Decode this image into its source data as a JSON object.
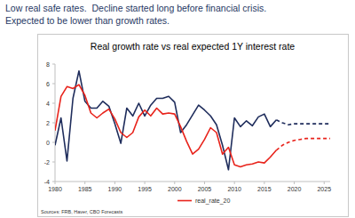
{
  "header": {
    "title": "Low real safe rates.  Decline started long before financial crisis.",
    "subtitle": "Expected to be lower than growth rates."
  },
  "chart_data": {
    "type": "line",
    "title": "Real growth rate vs real expected 1Y interest rate",
    "source": "Sources: FRB, Haver, CBO Forecasts",
    "x": [
      1980,
      1981,
      1982,
      1983,
      1984,
      1985,
      1986,
      1987,
      1988,
      1989,
      1990,
      1991,
      1992,
      1993,
      1994,
      1995,
      1996,
      1997,
      1998,
      1999,
      2000,
      2001,
      2002,
      2003,
      2004,
      2005,
      2006,
      2007,
      2008,
      2009,
      2010,
      2011,
      2012,
      2013,
      2014,
      2015,
      2016,
      2017,
      2018,
      2019,
      2020,
      2021,
      2022,
      2023,
      2024,
      2025,
      2026
    ],
    "xlim": [
      1980,
      2026
    ],
    "xticks": [
      1980,
      1985,
      1990,
      1995,
      2000,
      2005,
      2010,
      2015,
      2020,
      2025
    ],
    "ylim": [
      -4,
      8
    ],
    "yticks": [
      -4,
      -2,
      0,
      2,
      4,
      6,
      8
    ],
    "grid": false,
    "legend": "bottom",
    "series": [
      {
        "color": "#1f2d5c",
        "line_style": "solid",
        "values": [
          -0.3,
          2.5,
          -1.9,
          4.5,
          7.3,
          4.2,
          3.5,
          3.5,
          4.2,
          3.7,
          1.9,
          -0.1,
          3.5,
          2.7,
          4.0,
          2.7,
          3.8,
          4.5,
          4.5,
          4.7,
          4.1,
          1.0,
          1.8,
          2.8,
          3.8,
          3.3,
          2.7,
          1.8,
          -0.3,
          -2.8,
          2.5,
          1.6,
          2.2,
          1.7,
          2.6,
          2.9,
          1.6,
          2.3,
          null,
          null,
          null,
          null,
          null,
          null,
          null,
          null,
          null
        ]
      },
      {
        "color": "#1f2d5c",
        "line_style": "dashed",
        "values": [
          null,
          null,
          null,
          null,
          null,
          null,
          null,
          null,
          null,
          null,
          null,
          null,
          null,
          null,
          null,
          null,
          null,
          null,
          null,
          null,
          null,
          null,
          null,
          null,
          null,
          null,
          null,
          null,
          null,
          null,
          null,
          null,
          null,
          null,
          null,
          null,
          null,
          2.3,
          2.0,
          1.8,
          1.9,
          1.9,
          1.9,
          1.9,
          1.9,
          1.9,
          1.9
        ]
      },
      {
        "name": "real_rate_20",
        "color": "#e8231b",
        "line_style": "solid",
        "values": [
          1.2,
          4.7,
          5.7,
          5.5,
          5.9,
          4.8,
          3.0,
          2.5,
          3.0,
          3.4,
          2.4,
          1.0,
          0.5,
          1.0,
          2.6,
          3.3,
          2.7,
          3.5,
          2.9,
          3.0,
          2.9,
          1.6,
          0.1,
          -1.2,
          -0.7,
          0.3,
          1.5,
          1.0,
          -1.2,
          -0.5,
          -2.3,
          -2.5,
          -2.3,
          -2.2,
          -2.0,
          -2.1,
          -1.5,
          -0.8,
          null,
          null,
          null,
          null,
          null,
          null,
          null,
          null,
          null
        ]
      },
      {
        "color": "#e8231b",
        "line_style": "dashed",
        "values": [
          null,
          null,
          null,
          null,
          null,
          null,
          null,
          null,
          null,
          null,
          null,
          null,
          null,
          null,
          null,
          null,
          null,
          null,
          null,
          null,
          null,
          null,
          null,
          null,
          null,
          null,
          null,
          null,
          null,
          null,
          null,
          null,
          null,
          null,
          null,
          null,
          null,
          -0.8,
          -0.3,
          0.0,
          0.2,
          0.3,
          0.4,
          0.4,
          0.4,
          0.4,
          0.4
        ]
      }
    ]
  }
}
